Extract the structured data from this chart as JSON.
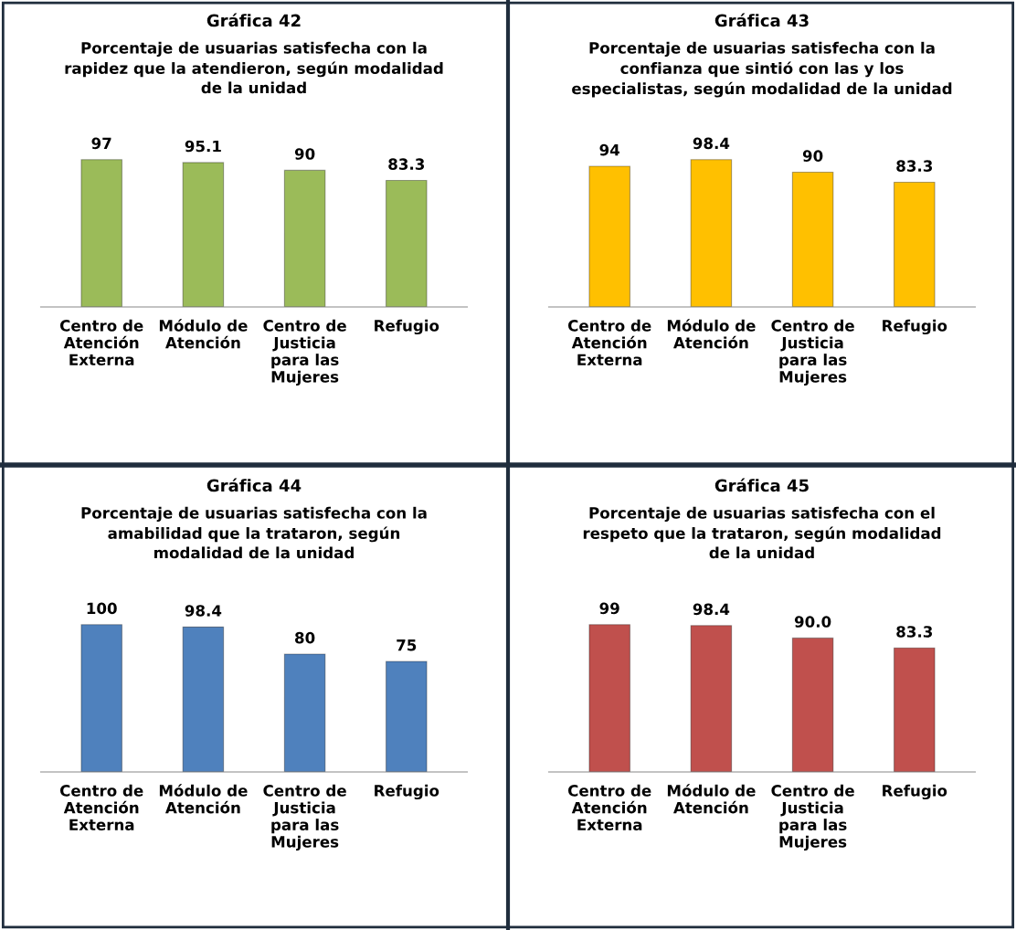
{
  "chart_data": [
    {
      "type": "bar",
      "title": "Gráfica 42",
      "subtitle": "Porcentaje de usuarias satisfecha con la\nrapidez que la atendieron, según modalidad\nde la unidad",
      "categories": [
        "Centro de\nAtención\nExterna",
        "Módulo de\nAtención",
        "Centro de\nJusticia\npara las\nMujeres",
        "Refugio"
      ],
      "values": [
        97,
        95.1,
        90,
        83.3
      ],
      "color": "#9bbb59",
      "data_labels": true,
      "tick_labels": "x"
    },
    {
      "type": "bar",
      "title": "Gráfica 43",
      "subtitle": "Porcentaje de usuarias satisfecha con la\nconfianza que sintió con las y los\nespecialistas, según modalidad de la unidad",
      "categories": [
        "Centro de\nAtención\nExterna",
        "Módulo de\nAtención",
        "Centro de\nJusticia\npara las\nMujeres",
        "Refugio"
      ],
      "values": [
        94,
        98.4,
        90,
        83.3
      ],
      "color": "#ffc000",
      "data_labels": true,
      "tick_labels": "x"
    },
    {
      "type": "bar",
      "title": "Gráfica 44",
      "subtitle": "Porcentaje de usuarias satisfecha con la\namabilidad que la trataron, según\nmodalidad de la unidad",
      "categories": [
        "Centro de\nAtención\nExterna",
        "Módulo de\nAtención",
        "Centro de\nJusticia\npara las\nMujeres",
        "Refugio"
      ],
      "values": [
        100,
        98.4,
        80,
        75
      ],
      "color": "#4f81bd",
      "data_labels": true,
      "tick_labels": "x"
    },
    {
      "type": "bar",
      "title": "Gráfica 45",
      "subtitle": "Porcentaje de usuarias satisfecha con el\nrespeto que la trataron, según modalidad\nde la unidad",
      "categories": [
        "Centro de\nAtención\nExterna",
        "Módulo de\nAtención",
        "Centro de\nJusticia\npara las\nMujeres",
        "Refugio"
      ],
      "values": [
        99,
        98.4,
        90,
        83.3
      ],
      "value_labels": [
        "99",
        "98.4",
        "90.0",
        "83.3"
      ],
      "color": "#c0504d",
      "tick_labels": "x"
    }
  ]
}
